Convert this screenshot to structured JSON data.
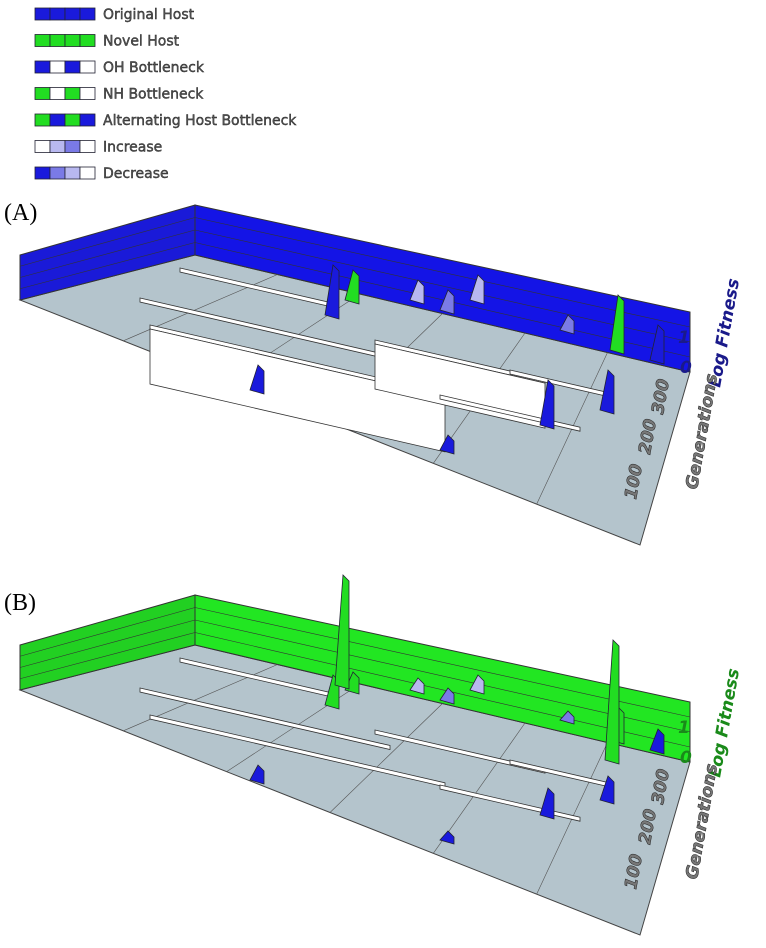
{
  "legend": [
    {
      "label": "Original Host"
    },
    {
      "label": "Novel Host"
    },
    {
      "label": "OH Bottleneck"
    },
    {
      "label": "NH Bottleneck"
    },
    {
      "label": "Alternating Host Bottleneck"
    },
    {
      "label": "Increase"
    },
    {
      "label": "Decrease"
    }
  ],
  "panels": [
    {
      "label": "(A)",
      "fitness_title": "Log Fitness",
      "fitness_ticks": [
        0,
        1
      ],
      "generation_title": "Generations",
      "generation_ticks": [
        300,
        200,
        100
      ]
    },
    {
      "label": "(B)",
      "fitness_title": "Log Fitness",
      "fitness_ticks": [
        0,
        1
      ],
      "generation_title": "Generations",
      "generation_ticks": [
        300,
        200,
        100
      ]
    }
  ]
}
